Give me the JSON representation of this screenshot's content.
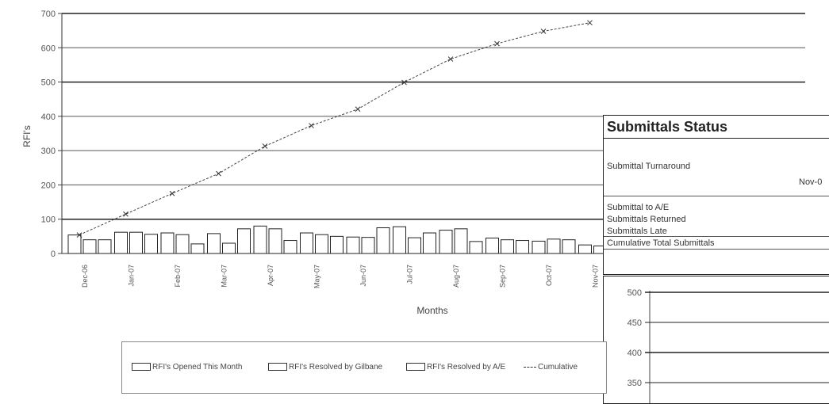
{
  "chart_data": {
    "type": "bar",
    "ylabel": "RFI's",
    "xlabel": "Months",
    "ylim": [
      0,
      700
    ],
    "yticks": [
      0,
      100,
      200,
      300,
      400,
      500,
      600,
      700
    ],
    "categories": [
      "Dec-06",
      "Jan-07",
      "Feb-07",
      "Mar-07",
      "Apr-07",
      "May-07",
      "Jun-07",
      "Jul-07",
      "Aug-07",
      "Sep-07",
      "Oct-07",
      "Nov-07"
    ],
    "series": [
      {
        "name": "RFI's Opened This Month",
        "kind": "bar",
        "values": [
          54,
          62,
          60,
          58,
          80,
          60,
          48,
          78,
          68,
          45,
          36,
          25
        ]
      },
      {
        "name": "RFI's Resolved by Gilbane",
        "kind": "bar",
        "values": [
          40,
          62,
          55,
          30,
          72,
          55,
          47,
          46,
          72,
          40,
          42,
          22
        ]
      },
      {
        "name": "RFI's Resolved by A/E",
        "kind": "bar",
        "values": [
          40,
          56,
          28,
          72,
          38,
          50,
          75,
          60,
          35,
          38,
          40,
          null
        ]
      },
      {
        "name": "Cumulative",
        "kind": "line",
        "values": [
          54,
          115,
          175,
          233,
          313,
          373,
          421,
          499,
          567,
          612,
          648,
          673
        ]
      }
    ],
    "grid": true,
    "legend": "bottom"
  },
  "status_panel": {
    "title": "Submittals Status",
    "turnaround_label": "Submittal Turnaround",
    "date": "Nov-0",
    "rows": [
      "Submittal to A/E",
      "Submittals Returned",
      "Submittals Late",
      "Cumulative Total Submittals"
    ]
  },
  "mini_chart": {
    "yticks": [
      500,
      450,
      400,
      350
    ]
  }
}
